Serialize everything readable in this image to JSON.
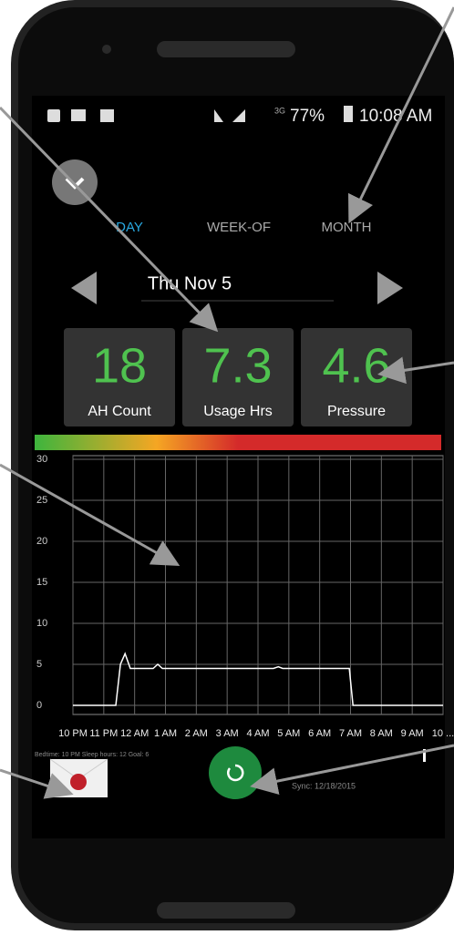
{
  "status_bar": {
    "network": "3G",
    "battery": "77%",
    "time": "10:08 AM"
  },
  "tabs": [
    "DAY",
    "WEEK-OF",
    "MONTH"
  ],
  "date": "Thu Nov 5",
  "cards": [
    {
      "value": "18",
      "label": "AH Count"
    },
    {
      "value": "7.3",
      "label": "Usage Hrs"
    },
    {
      "value": "4.6",
      "label": "Pressure"
    }
  ],
  "chart_data": {
    "type": "line",
    "x": [
      0,
      1.39,
      1.54,
      1.69,
      1.86,
      2.6,
      2.75,
      2.9,
      6.5,
      6.66,
      6.8,
      8.96,
      9.08,
      12
    ],
    "series": [
      {
        "color": "#ffffff",
        "values": [
          0,
          0,
          5,
          6.3,
          4.5,
          4.5,
          5,
          4.5,
          4.5,
          4.7,
          4.5,
          4.5,
          0,
          0
        ]
      }
    ],
    "xlim": [
      0,
      12
    ],
    "xticks": [
      {
        "value": 0,
        "label": "10 PM"
      },
      {
        "value": 1,
        "label": "11 PM"
      },
      {
        "value": 2,
        "label": "12 AM"
      },
      {
        "value": 3,
        "label": "1 AM"
      },
      {
        "value": 4,
        "label": "2 AM"
      },
      {
        "value": 5,
        "label": "3 AM"
      },
      {
        "value": 6,
        "label": "4 AM"
      },
      {
        "value": 7,
        "label": "5 AM"
      },
      {
        "value": 8,
        "label": "6 AM"
      },
      {
        "value": 9,
        "label": "7 AM"
      },
      {
        "value": 10,
        "label": "8 AM"
      },
      {
        "value": 11,
        "label": "9 AM"
      },
      {
        "value": 12,
        "label": "10 ..."
      }
    ],
    "ylim": [
      0,
      30
    ],
    "yticks": [
      0,
      5,
      10,
      15,
      20,
      25,
      30
    ],
    "grid": true
  },
  "footer": {
    "summary": "Bedtime: 10 PM  Sleep hours: 12  Goal: 6",
    "sync": "Sync: 12/18/2015"
  }
}
